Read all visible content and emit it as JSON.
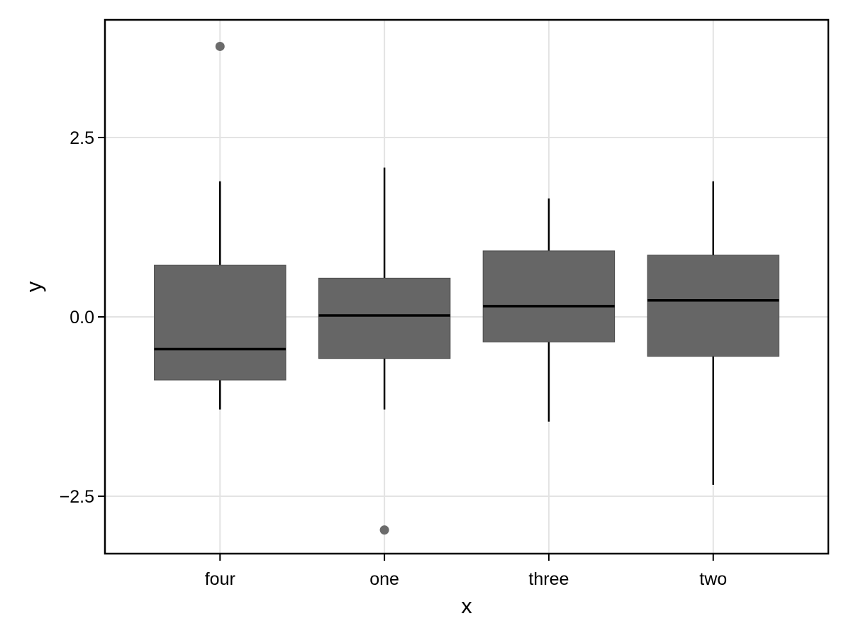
{
  "chart_data": {
    "type": "boxplot",
    "title": "",
    "xlabel": "x",
    "ylabel": "y",
    "categories": [
      "four",
      "one",
      "three",
      "two"
    ],
    "ylim": [
      -3.3,
      4.14
    ],
    "yticks": [
      {
        "value": 2.5,
        "label": "2.5"
      },
      {
        "value": 0.0,
        "label": "0.0"
      },
      {
        "value": -2.5,
        "label": "−2.5"
      }
    ],
    "grid": "major-only",
    "legend": "none",
    "series": [
      {
        "category": "four",
        "whisker_low": -1.29,
        "q1": -0.88,
        "median": -0.45,
        "q3": 0.72,
        "whisker_high": 1.89,
        "outliers": [
          3.77
        ]
      },
      {
        "category": "one",
        "whisker_low": -1.29,
        "q1": -0.58,
        "median": 0.02,
        "q3": 0.54,
        "whisker_high": 2.08,
        "outliers": [
          -2.97
        ]
      },
      {
        "category": "three",
        "whisker_low": -1.46,
        "q1": -0.35,
        "median": 0.15,
        "q3": 0.92,
        "whisker_high": 1.65,
        "outliers": []
      },
      {
        "category": "two",
        "whisker_low": -2.34,
        "q1": -0.55,
        "median": 0.23,
        "q3": 0.86,
        "whisker_high": 1.89,
        "outliers": []
      }
    ],
    "colors": {
      "background": "#ffffff",
      "panel_background": "#ffffff",
      "panel_border": "#000000",
      "grid": "#e3e3e3",
      "box_fill": "#666666",
      "box_stroke": "#4d4d4d",
      "median": "#000000",
      "whisker": "#000000",
      "outlier": "#6b6b6b",
      "tick": "#000000",
      "text": "#000000"
    }
  }
}
